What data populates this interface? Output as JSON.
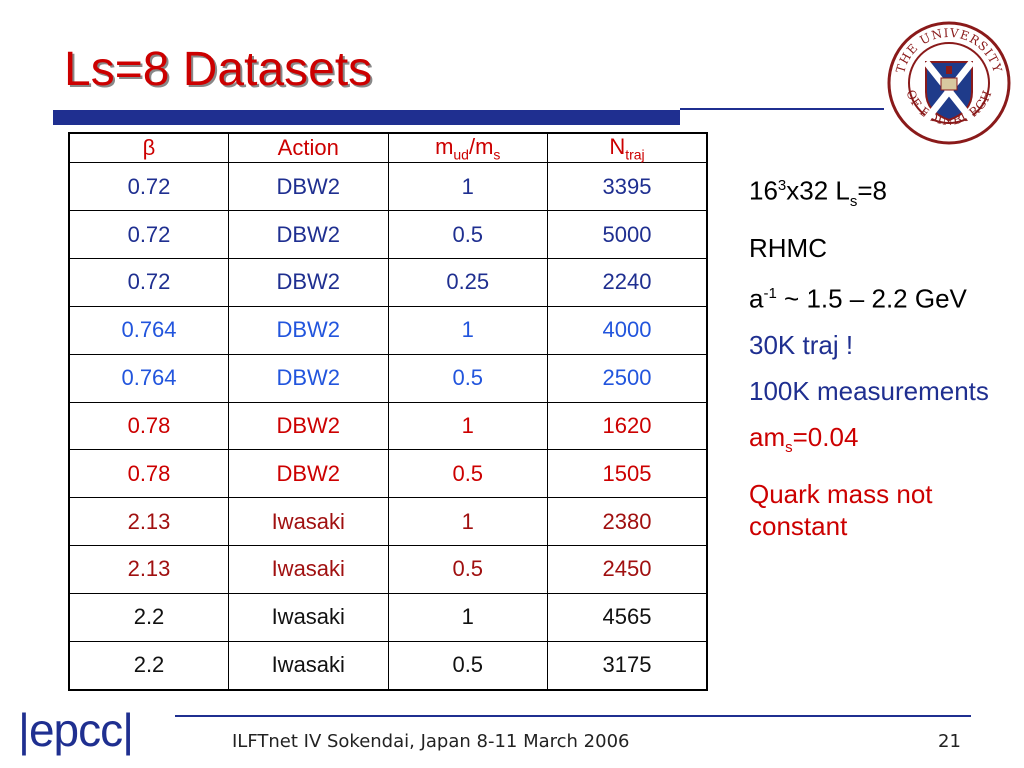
{
  "title": "Ls=8 Datasets",
  "logo": {
    "ring_text_top": "THE UNIVERSITY",
    "ring_text_bottom": "OF EDINBURGH"
  },
  "table": {
    "headers": {
      "beta": "β",
      "action": "Action",
      "ratio_m": "m",
      "ratio_ud": "ud",
      "ratio_sep": "/m",
      "ratio_s": "s",
      "n": "N",
      "n_sub": "traj"
    },
    "rows": [
      [
        "0.72",
        "DBW2",
        "1",
        "3395"
      ],
      [
        "0.72",
        "DBW2",
        "0.5",
        "5000"
      ],
      [
        "0.72",
        "DBW2",
        "0.25",
        "2240"
      ],
      [
        "0.764",
        "DBW2",
        "1",
        "4000"
      ],
      [
        "0.764",
        "DBW2",
        "0.5",
        "2500"
      ],
      [
        "0.78",
        "DBW2",
        "1",
        "1620"
      ],
      [
        "0.78",
        "DBW2",
        "0.5",
        "1505"
      ],
      [
        "2.13",
        "Iwasaki",
        "1",
        "2380"
      ],
      [
        "2.13",
        "Iwasaki",
        "0.5",
        "2450"
      ],
      [
        "2.2",
        "Iwasaki",
        "1",
        "4565"
      ],
      [
        "2.2",
        "Iwasaki",
        "0.5",
        "3175"
      ]
    ]
  },
  "side": {
    "lattice_a": "16",
    "lattice_sup": "3",
    "lattice_b": "x32 L",
    "lattice_sub": "s",
    "lattice_c": "=8",
    "rhmc": "RHMC",
    "a_a": "a",
    "a_sup": "-1",
    "a_b": " ~ 1.5 – 2.2 GeV",
    "traj": "30K traj !",
    "meas": "100K measurements",
    "ams_a": "am",
    "ams_sub": "s",
    "ams_b": "=0.04",
    "quark": "Quark mass not constant"
  },
  "footer": {
    "logo_text": "|epcc|",
    "text": "ILFTnet IV Sokendai, Japan 8-11 March 2006",
    "page": "21"
  },
  "colors": {
    "title": "#cc0000",
    "navy": "#1f2f90",
    "blue": "#2255dd",
    "red": "#cc0000"
  }
}
